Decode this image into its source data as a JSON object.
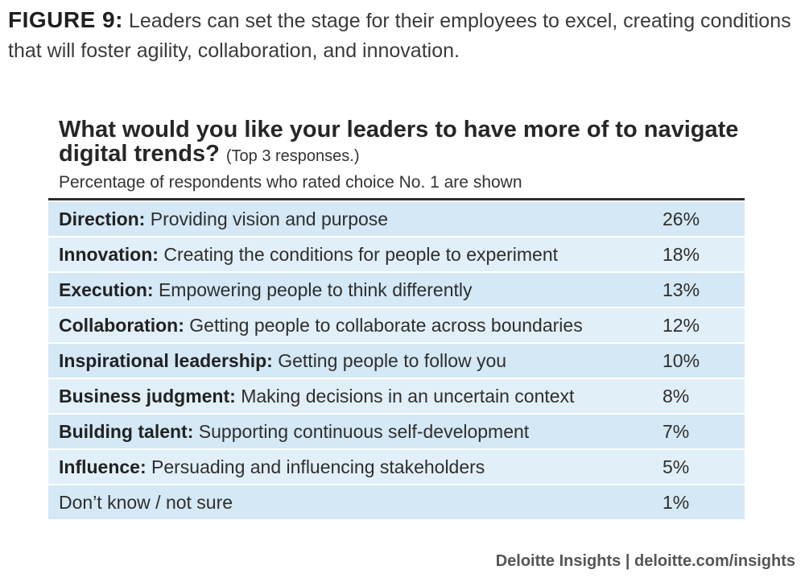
{
  "figure": {
    "label": "FIGURE 9:",
    "caption": "Leaders can set the stage for their employees to excel, creating conditions that will foster agility, collaboration, and innovation."
  },
  "footer": "Deloitte Insights | deloitte.com/insights",
  "colors": {
    "row_fill": "#d4e8f5",
    "row_fill_alt": "#e1eff8",
    "rule": "#2e2e2e"
  },
  "chart_data": {
    "type": "table",
    "title": "What would you like your leaders to have more of to navigate digital trends?",
    "title_note": "(Top 3 responses.)",
    "subtitle": "Percentage of respondents who rated choice No. 1 are shown",
    "unit": "%",
    "rows": [
      {
        "category": "Direction:",
        "description": "Providing vision and purpose",
        "value": 26,
        "display": "26%"
      },
      {
        "category": "Innovation:",
        "description": "Creating the conditions for people to experiment",
        "value": 18,
        "display": "18%"
      },
      {
        "category": "Execution:",
        "description": "Empowering people to think differently",
        "value": 13,
        "display": "13%"
      },
      {
        "category": "Collaboration:",
        "description": "Getting people to collaborate across boundaries",
        "value": 12,
        "display": "12%"
      },
      {
        "category": "Inspirational leadership:",
        "description": "Getting people to follow you",
        "value": 10,
        "display": "10%"
      },
      {
        "category": "Business judgment:",
        "description": "Making decisions in an uncertain context",
        "value": 8,
        "display": "8%"
      },
      {
        "category": "Building talent:",
        "description": "Supporting continuous self-development",
        "value": 7,
        "display": "7%"
      },
      {
        "category": "Influence:",
        "description": "Persuading and influencing stakeholders",
        "value": 5,
        "display": "5%"
      },
      {
        "category": "",
        "description": "Don’t know / not sure",
        "value": 1,
        "display": "1%"
      }
    ]
  }
}
